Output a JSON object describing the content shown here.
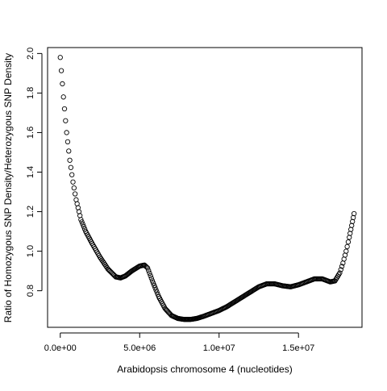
{
  "chart_data": {
    "type": "scatter",
    "xlabel": "Arabidopsis chromosome 4 (nucleotides)",
    "ylabel": "Ratio of Homozygous SNP Density/Heterozygous SNP Density",
    "xlim": [
      -800000,
      19000000
    ],
    "ylim": [
      0.615,
      2.03
    ],
    "x_ticks": [
      0,
      5000000,
      10000000,
      15000000
    ],
    "x_tick_labels": [
      "0.0e+00",
      "5.0e+06",
      "1.0e+07",
      "1.5e+07"
    ],
    "y_ticks": [
      0.8,
      1.0,
      1.2,
      1.4,
      1.6,
      1.8,
      2.0
    ],
    "y_tick_labels": [
      "0.8",
      "1.0",
      "1.2",
      "1.4",
      "1.6",
      "1.8",
      "2.0"
    ],
    "marker": "open-circle",
    "grid": false,
    "legend": "none",
    "point_color": "#000000",
    "series": [
      {
        "x": [
          0,
          200000,
          400000,
          600000,
          800000,
          1000000,
          1300000,
          1600000,
          2000000,
          2500000,
          3000000,
          3500000,
          3800000,
          4100000,
          4500000,
          5000000,
          5300000,
          5500000,
          5800000,
          6200000,
          6600000,
          7000000,
          7400000,
          7800000,
          8200000,
          8600000,
          9000000,
          9500000,
          10000000,
          10500000,
          11000000,
          11500000,
          12000000,
          12500000,
          13000000,
          13500000,
          14000000,
          14500000,
          15000000,
          15500000,
          16000000,
          16500000,
          17000000,
          17300000,
          17600000,
          17800000,
          18000000,
          18200000,
          18350000,
          18500000
        ],
        "y": [
          1.98,
          1.78,
          1.6,
          1.46,
          1.35,
          1.26,
          1.16,
          1.1,
          1.04,
          0.97,
          0.91,
          0.87,
          0.865,
          0.875,
          0.9,
          0.925,
          0.93,
          0.915,
          0.85,
          0.77,
          0.71,
          0.675,
          0.66,
          0.655,
          0.655,
          0.66,
          0.67,
          0.685,
          0.7,
          0.72,
          0.745,
          0.77,
          0.795,
          0.82,
          0.835,
          0.835,
          0.825,
          0.82,
          0.83,
          0.845,
          0.86,
          0.86,
          0.845,
          0.85,
          0.89,
          0.94,
          1.0,
          1.07,
          1.13,
          1.19
        ]
      }
    ]
  }
}
